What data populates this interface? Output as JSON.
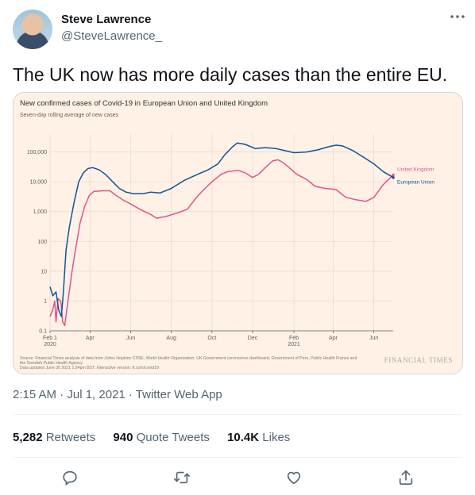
{
  "user": {
    "name": "Steve Lawrence",
    "handle": "@SteveLawrence_"
  },
  "tweet": {
    "text": "The UK now has more daily cases than the entire EU.",
    "timestamp": "2:15 AM · Jul 1, 2021 · Twitter Web App"
  },
  "stats": {
    "retweets_count": "5,282",
    "retweets_label": "Retweets",
    "quote_count": "940",
    "quote_label": "Quote Tweets",
    "likes_count": "10.4K",
    "likes_label": "Likes"
  },
  "icons": {
    "more": "more-icon",
    "reply": "reply-icon",
    "retweet": "retweet-icon",
    "like": "heart-icon",
    "share": "share-icon"
  },
  "chart_data": {
    "type": "line",
    "title": "New confirmed cases of Covid-19 in European Union and United Kingdom",
    "subtitle": "Seven-day rolling average of new cases",
    "y_scale": "log",
    "ylim": [
      0.1,
      400000
    ],
    "y_ticks": [
      0.1,
      1,
      10,
      100,
      1000,
      10000,
      100000
    ],
    "y_tick_labels": [
      "0.1",
      "1",
      "10",
      "100",
      "1,000",
      "10,000",
      "100,000"
    ],
    "x_range": [
      "2020-02-01",
      "2021-06-30"
    ],
    "x_ticks": [
      "2020-02-01",
      "2020-04-01",
      "2020-06-01",
      "2020-08-01",
      "2020-10-01",
      "2020-12-01",
      "2021-02-01",
      "2021-04-01",
      "2021-06-01"
    ],
    "x_tick_labels": [
      "Feb 1",
      "Apr",
      "Jun",
      "Aug",
      "Oct",
      "Dec",
      "Feb",
      "Apr",
      "Jun"
    ],
    "x_year_labels": [
      {
        "at": "2020-02-01",
        "text": "2020"
      },
      {
        "at": "2021-02-01",
        "text": "2021"
      }
    ],
    "grid": true,
    "colors": {
      "background": "#fff1e5",
      "eu": "#0f5499",
      "uk": "#e0548f"
    },
    "series": [
      {
        "name": "European Union",
        "color": "#0f5499",
        "points": [
          [
            "2020-02-01",
            3
          ],
          [
            "2020-02-05",
            1.5
          ],
          [
            "2020-02-10",
            2
          ],
          [
            "2020-02-14",
            0.5
          ],
          [
            "2020-02-18",
            0.3
          ],
          [
            "2020-02-21",
            2
          ],
          [
            "2020-02-25",
            50
          ],
          [
            "2020-03-01",
            300
          ],
          [
            "2020-03-08",
            2000
          ],
          [
            "2020-03-15",
            10000
          ],
          [
            "2020-03-22",
            20000
          ],
          [
            "2020-03-29",
            28000
          ],
          [
            "2020-04-05",
            30000
          ],
          [
            "2020-04-15",
            25000
          ],
          [
            "2020-04-25",
            17000
          ],
          [
            "2020-05-05",
            10000
          ],
          [
            "2020-05-15",
            6000
          ],
          [
            "2020-05-25",
            4500
          ],
          [
            "2020-06-05",
            4000
          ],
          [
            "2020-06-20",
            4000
          ],
          [
            "2020-07-01",
            4500
          ],
          [
            "2020-07-15",
            4200
          ],
          [
            "2020-08-01",
            6000
          ],
          [
            "2020-08-20",
            11000
          ],
          [
            "2020-09-10",
            18000
          ],
          [
            "2020-09-25",
            25000
          ],
          [
            "2020-10-10",
            40000
          ],
          [
            "2020-10-20",
            80000
          ],
          [
            "2020-11-01",
            150000
          ],
          [
            "2020-11-08",
            200000
          ],
          [
            "2020-11-20",
            180000
          ],
          [
            "2020-12-05",
            130000
          ],
          [
            "2020-12-20",
            140000
          ],
          [
            "2021-01-05",
            130000
          ],
          [
            "2021-01-20",
            110000
          ],
          [
            "2021-02-01",
            95000
          ],
          [
            "2021-02-20",
            100000
          ],
          [
            "2021-03-10",
            120000
          ],
          [
            "2021-03-25",
            150000
          ],
          [
            "2021-04-05",
            170000
          ],
          [
            "2021-04-15",
            160000
          ],
          [
            "2021-05-01",
            110000
          ],
          [
            "2021-05-15",
            70000
          ],
          [
            "2021-06-01",
            40000
          ],
          [
            "2021-06-15",
            22000
          ],
          [
            "2021-06-30",
            14000
          ]
        ]
      },
      {
        "name": "United Kingdom",
        "color": "#e0548f",
        "points": [
          [
            "2020-02-01",
            0.3
          ],
          [
            "2020-02-05",
            0.5
          ],
          [
            "2020-02-08",
            1
          ],
          [
            "2020-02-10",
            0.2
          ],
          [
            "2020-02-13",
            1.2
          ],
          [
            "2020-02-17",
            1
          ],
          [
            "2020-02-20",
            0.2
          ],
          [
            "2020-02-23",
            0.15
          ],
          [
            "2020-02-28",
            1
          ],
          [
            "2020-03-05",
            10
          ],
          [
            "2020-03-10",
            50
          ],
          [
            "2020-03-17",
            400
          ],
          [
            "2020-03-24",
            1500
          ],
          [
            "2020-03-31",
            3500
          ],
          [
            "2020-04-07",
            4800
          ],
          [
            "2020-04-20",
            5000
          ],
          [
            "2020-05-01",
            5000
          ],
          [
            "2020-05-10",
            3500
          ],
          [
            "2020-05-20",
            2500
          ],
          [
            "2020-06-01",
            1800
          ],
          [
            "2020-06-15",
            1200
          ],
          [
            "2020-07-01",
            800
          ],
          [
            "2020-07-10",
            600
          ],
          [
            "2020-07-25",
            700
          ],
          [
            "2020-08-10",
            900
          ],
          [
            "2020-08-25",
            1200
          ],
          [
            "2020-09-05",
            2500
          ],
          [
            "2020-09-15",
            4500
          ],
          [
            "2020-10-01",
            10000
          ],
          [
            "2020-10-15",
            18000
          ],
          [
            "2020-10-25",
            22000
          ],
          [
            "2020-11-10",
            24000
          ],
          [
            "2020-11-20",
            20000
          ],
          [
            "2020-12-01",
            14000
          ],
          [
            "2020-12-10",
            18000
          ],
          [
            "2020-12-20",
            30000
          ],
          [
            "2020-12-31",
            50000
          ],
          [
            "2021-01-08",
            55000
          ],
          [
            "2021-01-15",
            45000
          ],
          [
            "2021-01-25",
            30000
          ],
          [
            "2021-02-05",
            18000
          ],
          [
            "2021-02-20",
            12000
          ],
          [
            "2021-03-05",
            7000
          ],
          [
            "2021-03-20",
            6000
          ],
          [
            "2021-04-05",
            5500
          ],
          [
            "2021-04-20",
            3000
          ],
          [
            "2021-05-05",
            2500
          ],
          [
            "2021-05-20",
            2200
          ],
          [
            "2021-06-01",
            3000
          ],
          [
            "2021-06-15",
            8000
          ],
          [
            "2021-06-30",
            17000
          ]
        ]
      }
    ],
    "source_lines": [
      "Source: Financial Times analysis of data from Johns Hopkins CSSE, World Health Organization, UK Government coronavirus dashboard, Government of Peru, Public Health France and",
      "the Swedish Public Health Agency.",
      "Data updated June 30 2021 1.54pm BST. Interactive version: ft.com/covid19"
    ],
    "brand": "FINANCIAL TIMES"
  }
}
